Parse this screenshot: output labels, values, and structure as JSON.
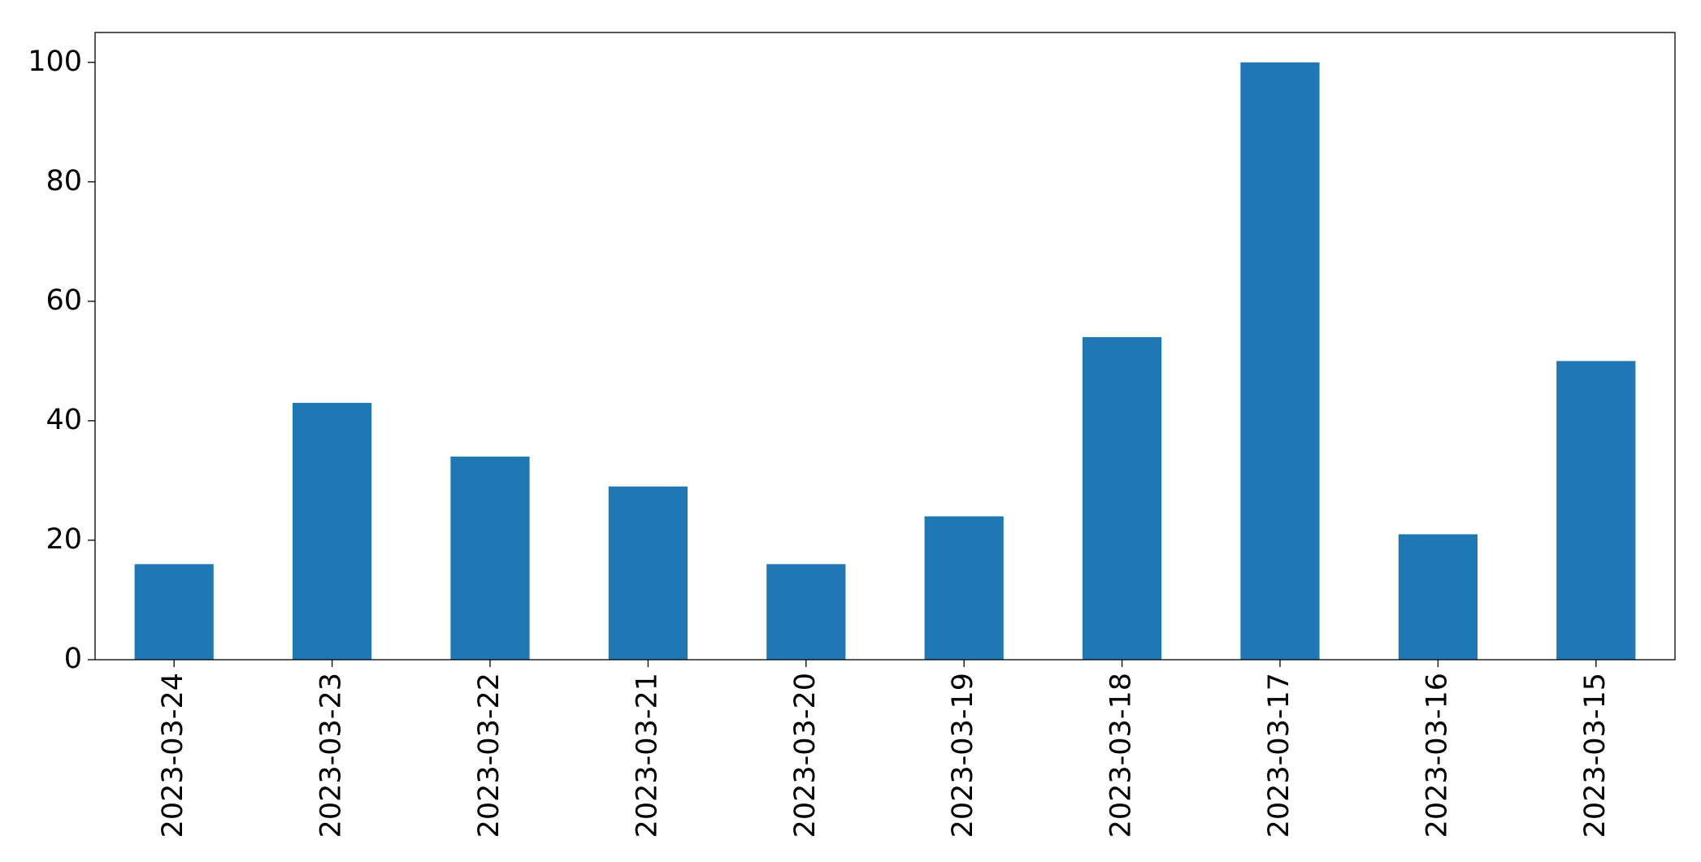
{
  "chart_data": {
    "type": "bar",
    "categories": [
      "2023-03-24",
      "2023-03-23",
      "2023-03-22",
      "2023-03-21",
      "2023-03-20",
      "2023-03-19",
      "2023-03-18",
      "2023-03-17",
      "2023-03-16",
      "2023-03-15"
    ],
    "values": [
      16,
      43,
      34,
      29,
      16,
      24,
      54,
      100,
      21,
      50
    ],
    "color": "#1f77b4",
    "ylim": [
      0,
      105
    ],
    "yticks": [
      0,
      20,
      40,
      60,
      80,
      100
    ],
    "grid": false
  }
}
